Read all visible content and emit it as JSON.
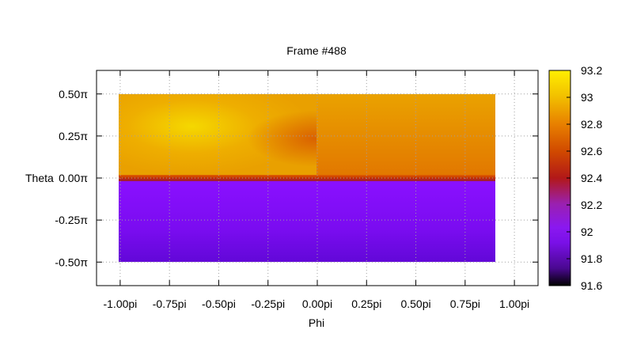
{
  "chart_data": {
    "type": "heatmap",
    "title": "Frame #488",
    "xlabel": "Phi",
    "ylabel": "Theta",
    "x_ticks": [
      "-1.00pi",
      "-0.75pi",
      "-0.50pi",
      "-0.25pi",
      "0.00pi",
      "0.25pi",
      "0.50pi",
      "0.75pi",
      "1.00pi"
    ],
    "y_ticks": [
      "0.50π",
      "0.25π",
      "0.00π",
      "-0.25π",
      "-0.50π"
    ],
    "xlim": [
      -1.12,
      1.12
    ],
    "ylim": [
      -0.64,
      0.64
    ],
    "data_x_range": [
      -1.0,
      0.9
    ],
    "data_y_range": [
      -0.5,
      0.5
    ],
    "grid": true,
    "colorbar": {
      "min": 91.6,
      "max": 93.2,
      "ticks": [
        "93.2",
        "93",
        "92.8",
        "92.6",
        "92.4",
        "92.2",
        "92",
        "91.8",
        "91.6"
      ]
    },
    "regions": [
      {
        "phi": [
          -1.0,
          0.0
        ],
        "theta": [
          0.0,
          0.5
        ],
        "value_range": [
          92.7,
          93.1
        ],
        "peak_value": 93.1,
        "peak_at": [
          -0.63,
          0.3
        ]
      },
      {
        "phi": [
          0.0,
          0.9
        ],
        "theta": [
          0.0,
          0.5
        ],
        "value_range": [
          92.75,
          92.95
        ]
      },
      {
        "phi": [
          -1.0,
          0.9
        ],
        "theta": [
          -0.5,
          0.0
        ],
        "value_range": [
          91.85,
          92.0
        ]
      }
    ]
  }
}
